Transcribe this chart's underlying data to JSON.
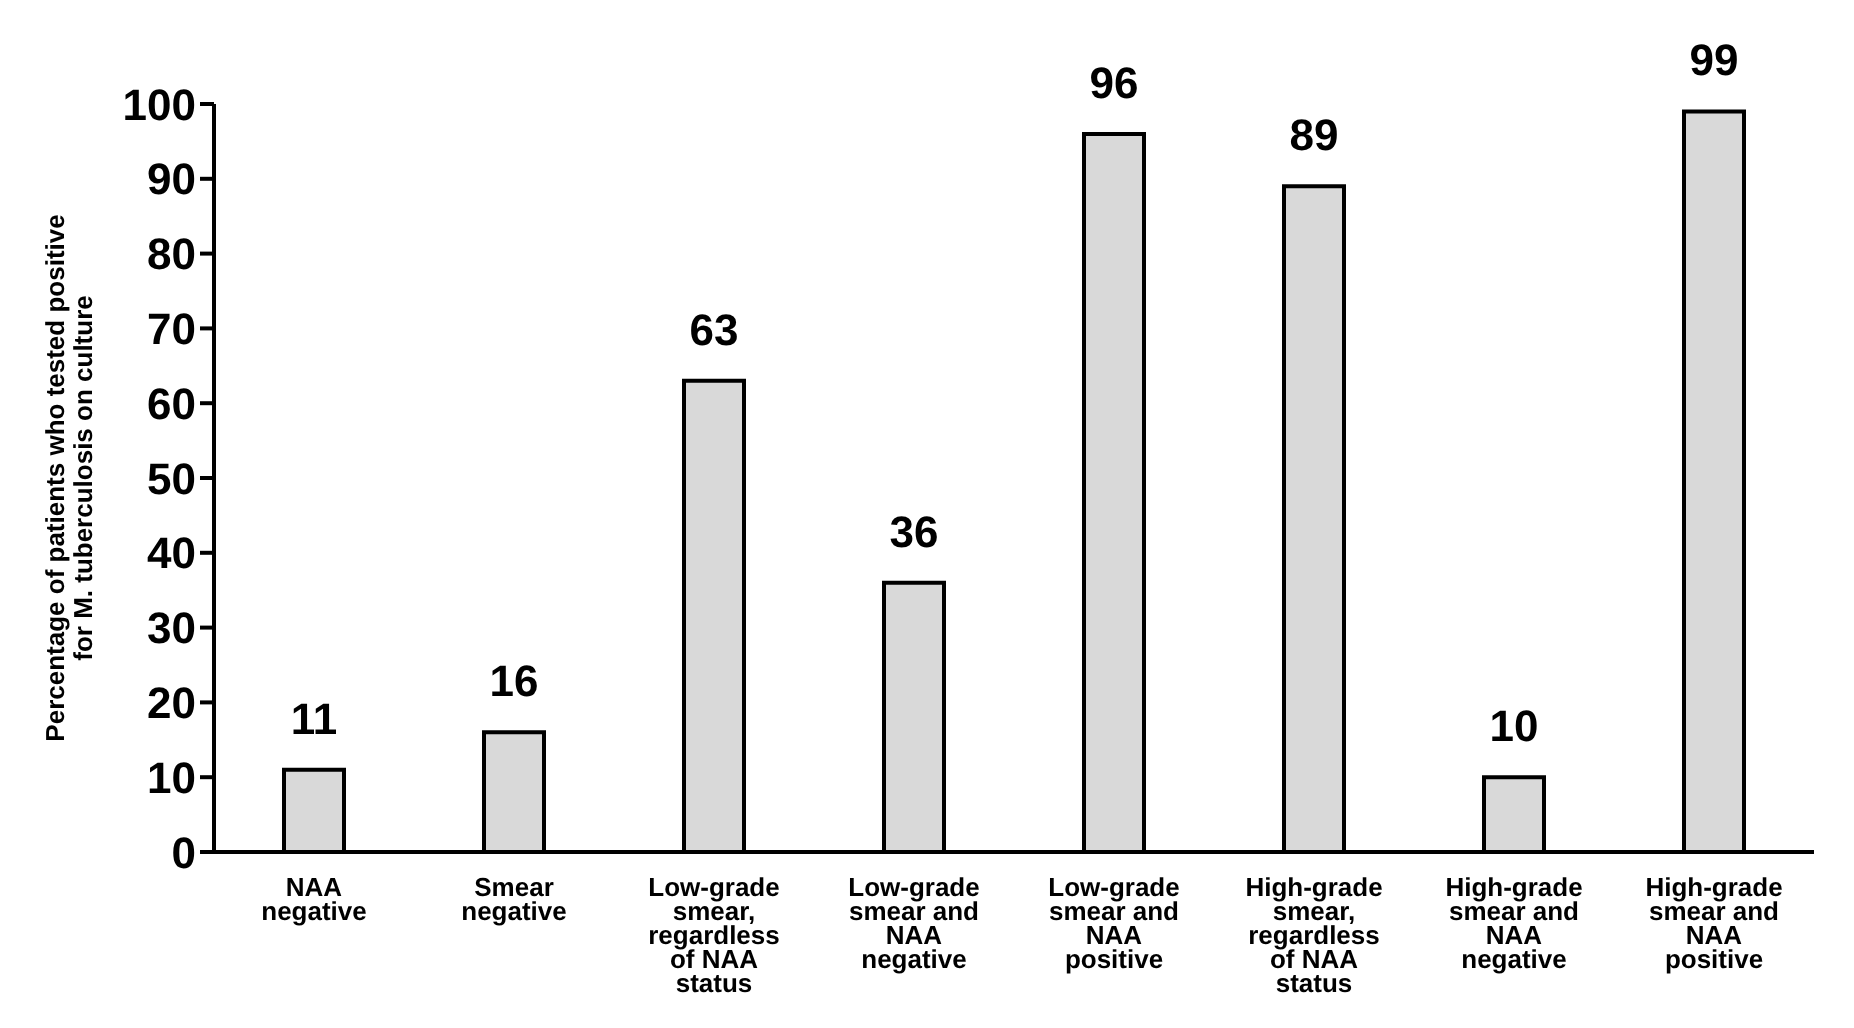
{
  "chart_data": {
    "type": "bar",
    "ylabel": "Percentage of patients who tested positive for M. tuberculosis on culture",
    "categories": [
      "NAA negative",
      "Smear negative",
      "Low-grade smear, regardless of NAA status",
      "Low-grade smear and NAA negative",
      "Low-grade smear and NAA positive",
      "High-grade smear, regardless of NAA status",
      "High-grade smear and NAA negative",
      "High-grade smear and NAA positive"
    ],
    "values": [
      11,
      16,
      63,
      36,
      96,
      89,
      10,
      99
    ],
    "color": "#d9d9d9",
    "ylim": [
      0,
      100
    ],
    "yticks": [
      0,
      10,
      20,
      30,
      40,
      50,
      60,
      70,
      80,
      90,
      100
    ],
    "grid": false,
    "legend": false,
    "data_labels": true
  }
}
